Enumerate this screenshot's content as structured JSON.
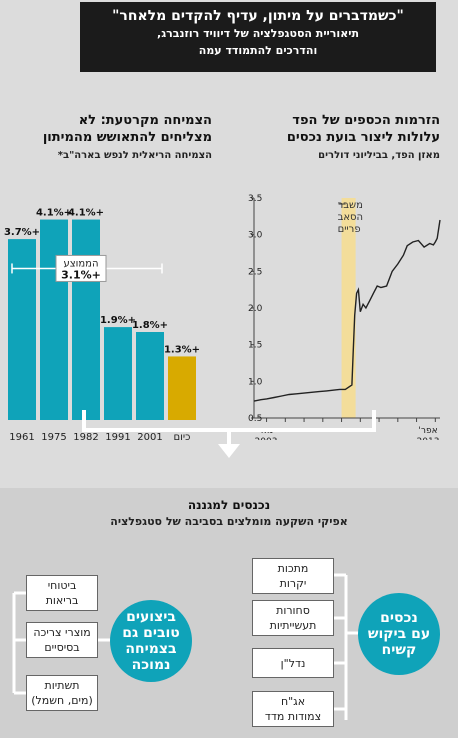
{
  "banner": {
    "title": "\"כשמדברים על מיתון, עדיף להקדים מלאחר\"",
    "subtitle_line1": "תיאוריית הסטגפלציה של דיוויד רוזנברג,",
    "subtitle_line2": "והדרכים להתמודד עמה"
  },
  "right_section": {
    "title_line1": "הזרמות הכספים של הפד",
    "title_line2": "עלולות ליצור בועת נכסים",
    "subtitle": "מאזן הפד, בביליוני דולרים",
    "annotation_line1": "משבר",
    "annotation_line2": "הסאב",
    "annotation_line3": "פריים",
    "x_start_line1": "מאי",
    "x_start_line2": "2003",
    "x_end_line1": "אפר'",
    "x_end_line2": "2013"
  },
  "left_section": {
    "title_line1": "הצמיחה מקרטעת: לא",
    "title_line2": "מצליחים להתאושש מהמיתון",
    "subtitle": "הצמיחה הריאלית לנפש בארה\"ב*",
    "avg_label": "הממוצע",
    "avg_value": "+3.1%"
  },
  "bottom": {
    "title": "נכנסים למגננה",
    "subtitle": "אפיקי השקעה מומלצים בסביבה של סטגפלציה",
    "right_circle": [
      "נכסים",
      "עם ביקוש",
      "קשיח"
    ],
    "right_boxes": [
      [
        "מתכות",
        "יקרות"
      ],
      [
        "סחורות",
        "תעשייתיות"
      ],
      [
        "נדל\"ן"
      ],
      [
        "אג\"ח",
        "צמודות מדד"
      ]
    ],
    "left_circle": [
      "ביצועים",
      "טובים גם",
      "בצמיחה",
      "נמוכה"
    ],
    "left_boxes": [
      [
        "ביטוחי",
        "בריאות"
      ],
      [
        "מוצרי צריכה",
        "בסיסיים"
      ],
      [
        "תשתיות",
        "(מים, חשמל)"
      ]
    ]
  },
  "colors": {
    "bar": "#0fa3b9",
    "bar_highlight": "#d8aa00",
    "line": "#222222",
    "crisis_band": "#f3dd9a",
    "banner": "#1b1b1b"
  },
  "chart_data": [
    {
      "type": "bar",
      "categories": [
        "1961",
        "1975",
        "1982",
        "1991",
        "2001",
        "כיום"
      ],
      "values": [
        3.7,
        4.1,
        4.1,
        1.9,
        1.8,
        1.3
      ],
      "labels": [
        "+3.7%",
        "+4.1%",
        "+4.1%",
        "+1.9%",
        "+1.8%",
        "+1.3%"
      ],
      "reference_line": 3.1,
      "ylim": [
        0,
        4.5
      ]
    },
    {
      "type": "line",
      "yticks": [
        0.5,
        1.0,
        1.5,
        2.0,
        2.5,
        3.0,
        3.5
      ],
      "ytick_labels": [
        "0.5",
        "1.0",
        "1.5",
        "2.0",
        "2.5",
        "3.0",
        "3.5"
      ],
      "ylim": [
        0.5,
        3.5
      ],
      "xlim": [
        2003.33,
        2013.25
      ],
      "highlight_band": [
        2008.0,
        2008.75
      ],
      "x": [
        2003.33,
        2003.7,
        2004.0,
        2004.4,
        2004.8,
        2005.2,
        2005.6,
        2006.0,
        2006.4,
        2006.8,
        2007.2,
        2007.6,
        2007.9,
        2008.2,
        2008.55,
        2008.62,
        2008.7,
        2008.8,
        2008.9,
        2009.0,
        2009.15,
        2009.3,
        2009.5,
        2009.7,
        2009.9,
        2010.1,
        2010.4,
        2010.7,
        2011.0,
        2011.3,
        2011.5,
        2011.8,
        2012.1,
        2012.4,
        2012.7,
        2012.9,
        2013.0,
        2013.1,
        2013.2,
        2013.25
      ],
      "y": [
        0.73,
        0.75,
        0.76,
        0.78,
        0.8,
        0.82,
        0.83,
        0.84,
        0.85,
        0.86,
        0.87,
        0.88,
        0.89,
        0.89,
        0.95,
        1.4,
        1.9,
        2.2,
        2.25,
        1.95,
        2.05,
        2.0,
        2.1,
        2.2,
        2.3,
        2.28,
        2.3,
        2.5,
        2.6,
        2.72,
        2.85,
        2.9,
        2.92,
        2.83,
        2.88,
        2.86,
        2.9,
        2.95,
        3.12,
        3.2
      ]
    }
  ]
}
